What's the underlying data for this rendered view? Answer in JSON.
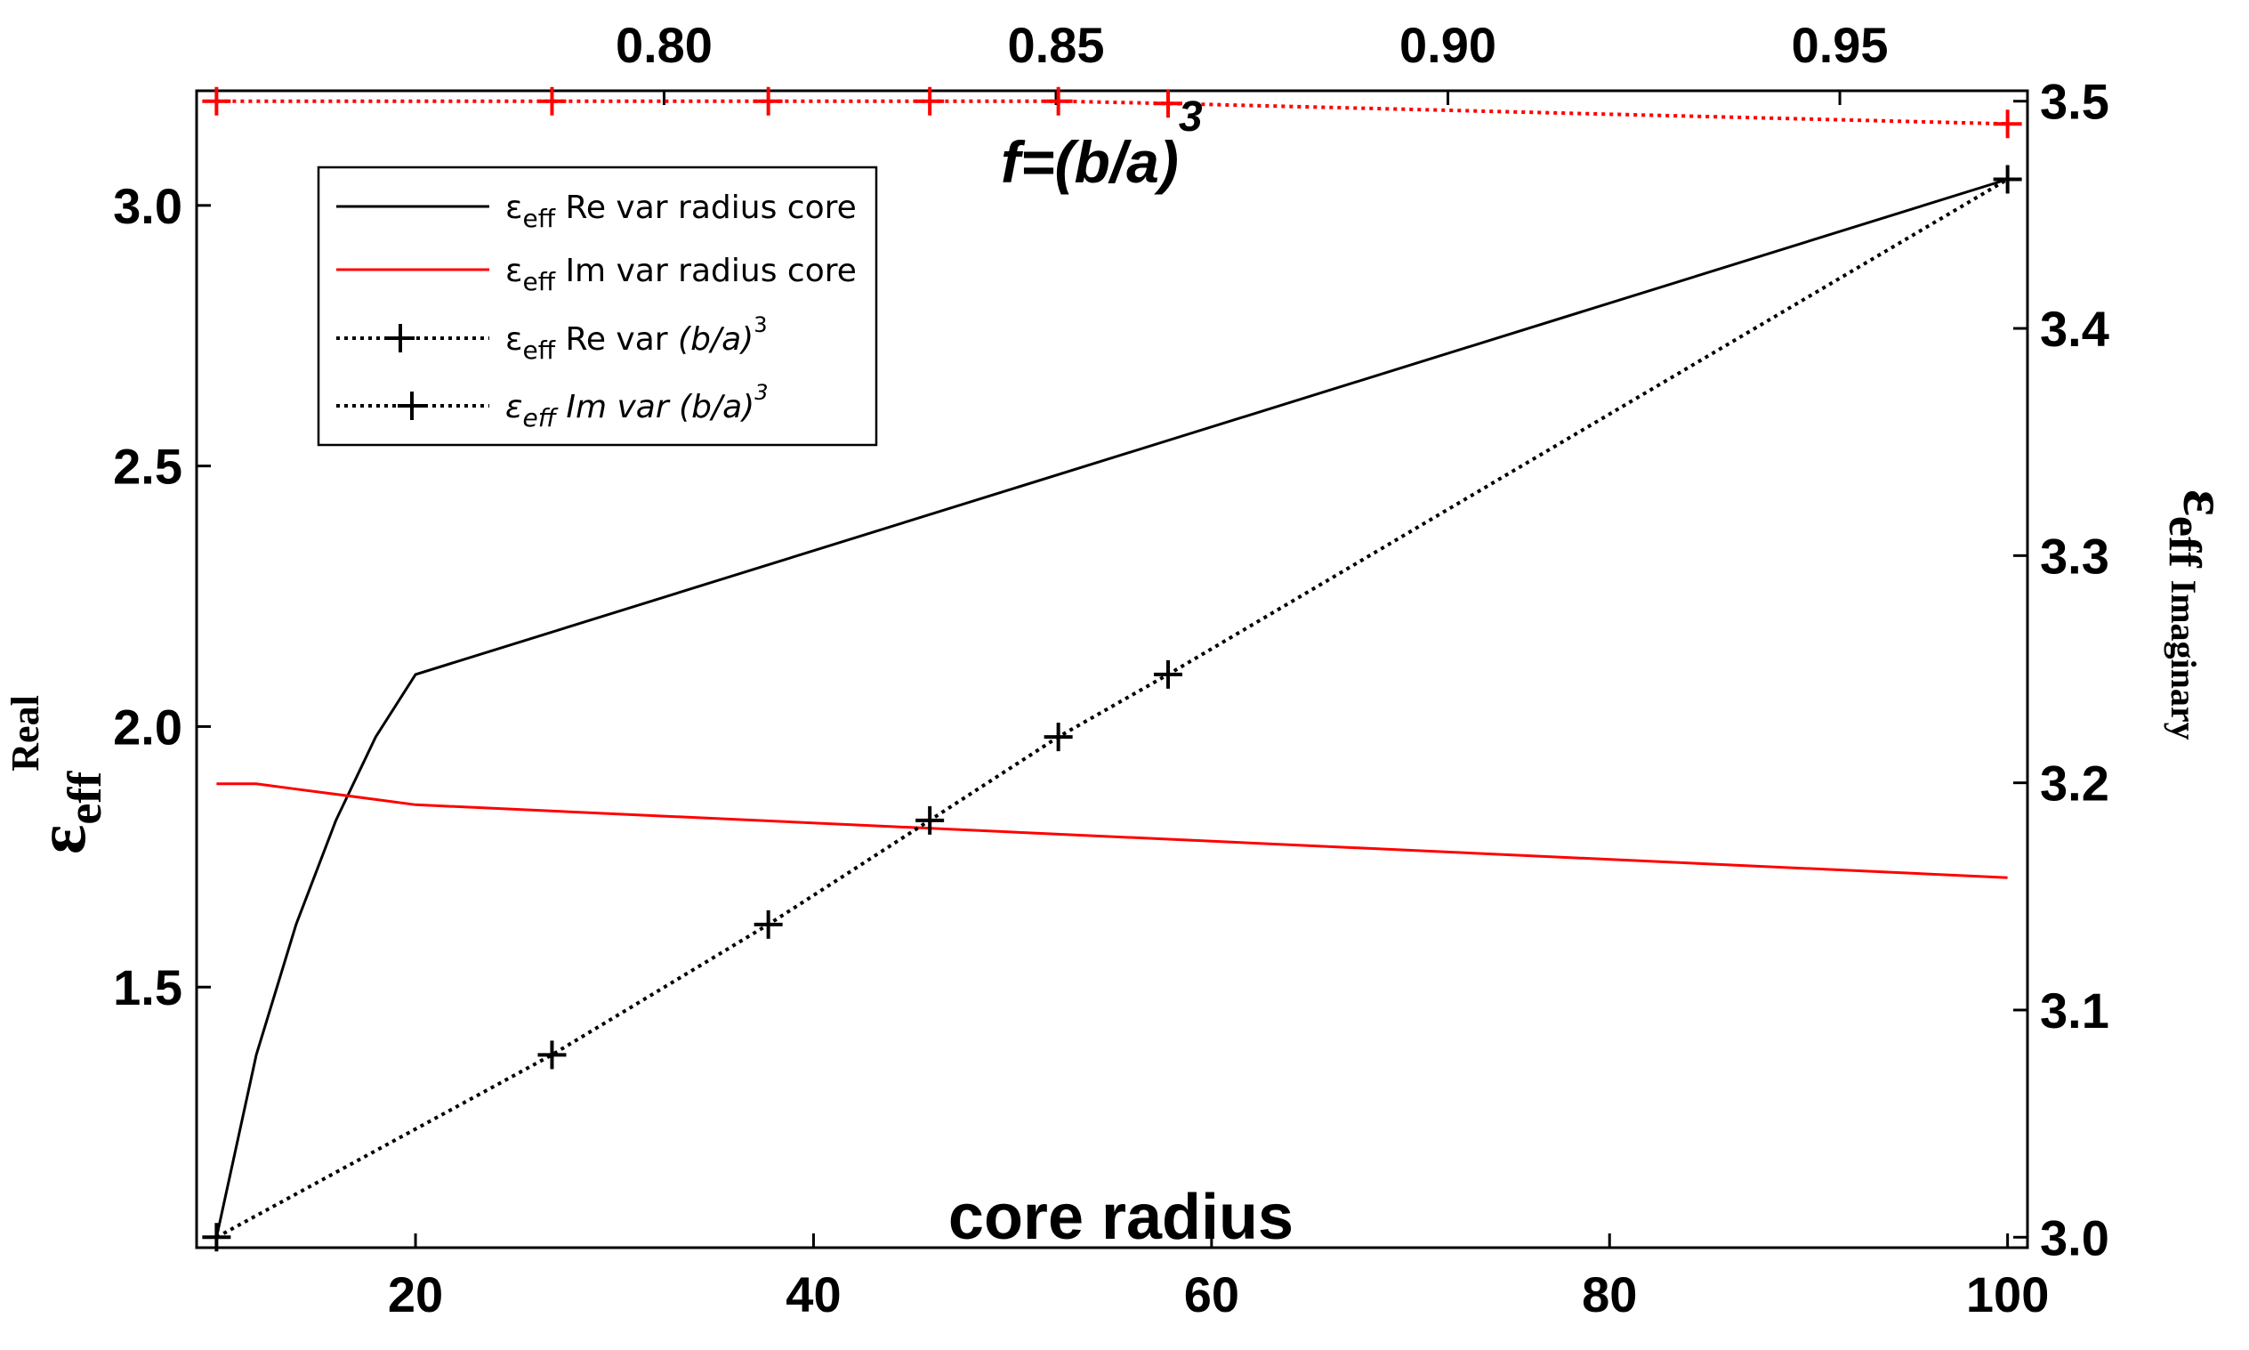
{
  "chart_data": {
    "type": "line",
    "title": "",
    "xlabel": "core radius",
    "xlim": [
      9,
      101
    ],
    "xticks": [
      "20",
      "40",
      "60",
      "80",
      "100"
    ],
    "top_xlabel": {
      "main": "f=(b/a)",
      "sup": "3"
    },
    "top_xlim": [
      0.7429,
      0.9714
    ],
    "top_xticks": [
      "0.80",
      "0.85",
      "0.90",
      "0.95"
    ],
    "ylabel_left": {
      "main": "ε",
      "sub": "eff",
      "sup": "Real"
    },
    "ylim_left": [
      1.0,
      3.22
    ],
    "yticks_left": [
      "1.5",
      "2.0",
      "2.5",
      "3.0"
    ],
    "ylabel_right": {
      "main": "ε",
      "sub": "eff",
      "sup": "Imaginary"
    },
    "ylim_right": [
      3.0,
      3.5
    ],
    "yticks_right": [
      "3.0",
      "3.1",
      "3.2",
      "3.3",
      "3.4",
      "3.5"
    ],
    "legend": {
      "position": "upper-left",
      "entries": [
        {
          "eps": "ε",
          "sub": "eff",
          "text": " Re var radius core"
        },
        {
          "eps": "ε",
          "sub": "eff",
          "text": " Im var radius core"
        },
        {
          "eps": "ε",
          "sub": "eff",
          "text": "  Re var ",
          "italic": "(b/a)",
          "sup": "3"
        },
        {
          "eps": "ε",
          "sub": "eff",
          "text": " Im var (b/a)",
          "sup": "3",
          "all_italic": true
        }
      ]
    },
    "series": [
      {
        "name": "εeff Re var radius core",
        "axis": "bottom-left",
        "color": "#000000",
        "style": "solid",
        "x": [
          10,
          12,
          14,
          16,
          18,
          20,
          100
        ],
        "y": [
          1.02,
          1.37,
          1.62,
          1.82,
          1.98,
          2.1,
          3.05
        ]
      },
      {
        "name": "εeff Im var radius core",
        "axis": "bottom-left",
        "color": "#ff0000",
        "style": "solid",
        "x": [
          10,
          12,
          14,
          16,
          18,
          20,
          100
        ],
        "y": [
          1.89,
          1.89,
          1.88,
          1.87,
          1.86,
          1.85,
          1.71
        ]
      },
      {
        "name": "εeff Re var (b/a)^3",
        "axis": "top-left",
        "color": "#000000",
        "style": "dotted",
        "marker": "+",
        "x": [
          0.7429,
          0.7857,
          0.8133,
          0.8339,
          0.8503,
          0.8643,
          0.9714
        ],
        "y": [
          1.02,
          1.37,
          1.62,
          1.82,
          1.98,
          2.1,
          3.05
        ]
      },
      {
        "name": "εeff Im var (b/a)^3",
        "axis": "top-right",
        "color": "#ff0000",
        "style": "dotted",
        "marker": "+",
        "x": [
          0.7429,
          0.7857,
          0.8133,
          0.8339,
          0.8503,
          0.8643,
          0.9714
        ],
        "y": [
          3.5,
          3.5,
          3.5,
          3.5,
          3.5,
          3.499,
          3.49
        ]
      }
    ]
  }
}
